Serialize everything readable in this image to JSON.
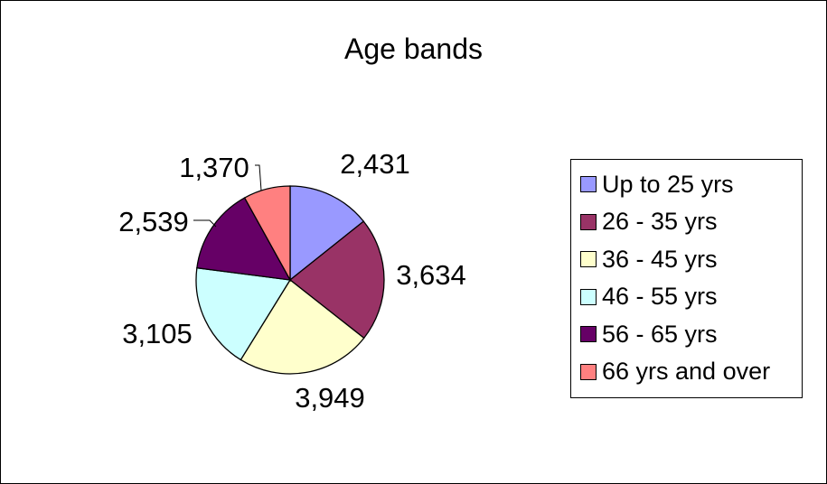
{
  "chart_data": {
    "type": "pie",
    "title": "Age bands",
    "slices": [
      {
        "label": "Up to 25 yrs",
        "value": 2431,
        "display": "2,431",
        "color": "#9999FF"
      },
      {
        "label": "26 - 35 yrs",
        "value": 3634,
        "display": "3,634",
        "color": "#993366"
      },
      {
        "label": "36 - 45 yrs",
        "value": 3949,
        "display": "3,949",
        "color": "#FFFFCC"
      },
      {
        "label": "46 - 55 yrs",
        "value": 3105,
        "display": "3,105",
        "color": "#CCFFFF"
      },
      {
        "label": "56 - 65 yrs",
        "value": 2539,
        "display": "2,539",
        "color": "#660066"
      },
      {
        "label": "66 yrs and over",
        "value": 1370,
        "display": "1,370",
        "color": "#FF8080"
      }
    ],
    "start_angle": "12 o'clock",
    "direction": "clockwise",
    "legend_position": "right"
  }
}
